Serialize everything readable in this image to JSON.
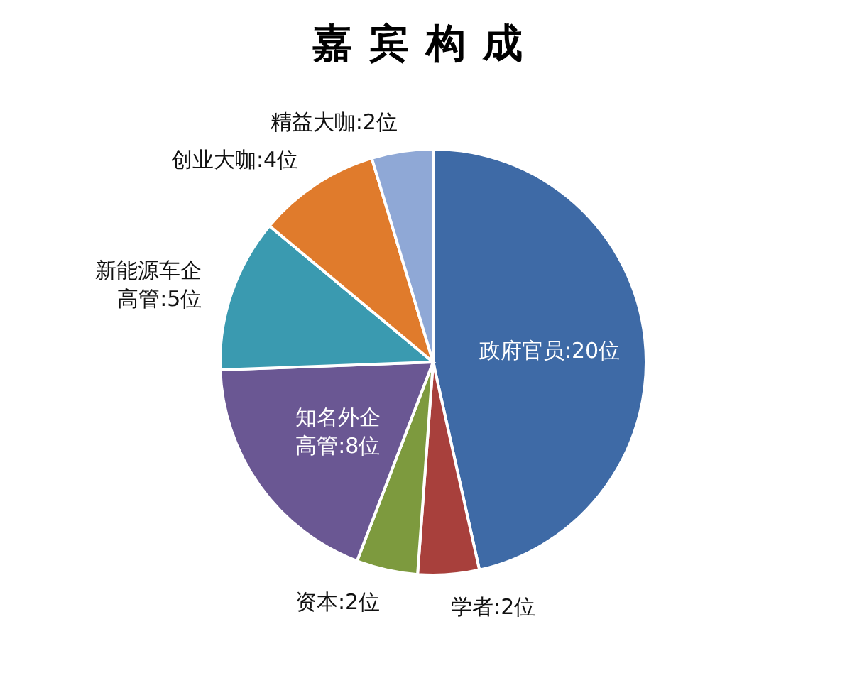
{
  "chart_data": {
    "type": "pie",
    "title": "嘉宾构成",
    "categories": [
      "政府官员",
      "学者",
      "资本",
      "知名外企高管",
      "新能源车企高管",
      "创业大咖",
      "精益大咖"
    ],
    "values": [
      20,
      2,
      2,
      8,
      5,
      4,
      2
    ],
    "value_labels": [
      "20位",
      "2位",
      "2位",
      "8位",
      "5位",
      "4位",
      "2位"
    ],
    "colors": [
      "#3e6aa6",
      "#a8403c",
      "#7d9a3e",
      "#6a5793",
      "#3a9ab0",
      "#e07b2c",
      "#8fa8d6"
    ]
  }
}
